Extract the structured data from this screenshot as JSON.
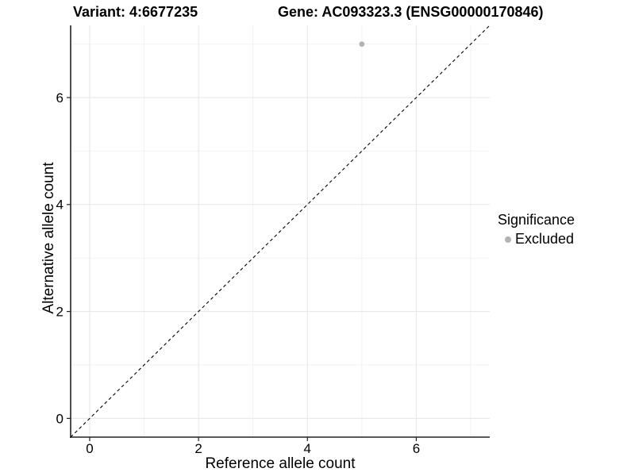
{
  "header": {
    "variant_title": "Variant: 4:6677235",
    "gene_title": "Gene: AC093323.3 (ENSG00000170846)"
  },
  "chart_data": {
    "type": "scatter",
    "xlabel": "Reference allele count",
    "ylabel": "Alternative allele count",
    "xlim": [
      -0.35,
      7.35
    ],
    "ylim": [
      -0.35,
      7.35
    ],
    "x_major_ticks": [
      0,
      2,
      4,
      6
    ],
    "y_major_ticks": [
      0,
      2,
      4,
      6
    ],
    "x_minor_ticks": [
      1,
      3,
      5,
      7
    ],
    "y_minor_ticks": [
      1,
      3,
      5,
      7
    ],
    "grid": "major and minor gridlines on white background",
    "points": [
      {
        "x": 5,
        "y": 7,
        "series": "Excluded"
      }
    ],
    "point_color": "#b3b3b3",
    "point_radius": 3.4,
    "identity_line": {
      "equation": "y = x",
      "style": "dashed",
      "color": "#000000",
      "from": [
        -0.35,
        -0.35
      ],
      "to": [
        7.35,
        7.35
      ]
    },
    "legend": {
      "title": "Significance",
      "position": "right",
      "items": [
        {
          "label": "Excluded",
          "color": "#b3b3b3"
        }
      ]
    },
    "colors": {
      "background": "#ffffff",
      "grid_major": "#e5e5e5",
      "grid_minor": "#f2f2f2",
      "axis_line": "#222222",
      "tick_mark": "#222222",
      "text": "#000000"
    }
  }
}
